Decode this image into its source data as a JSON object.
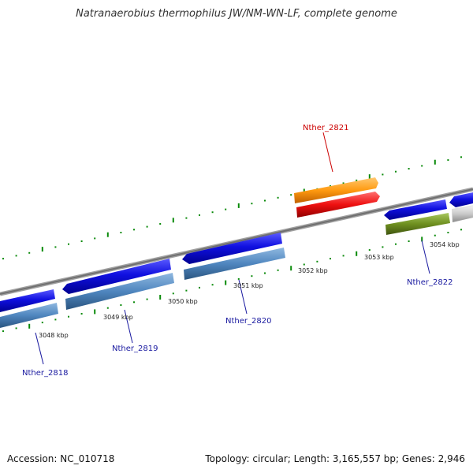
{
  "title": "Natranaerobius thermophilus JW/NM-WN-LF, complete genome",
  "footer": {
    "accession": "Accession: NC_010718",
    "summary": "Topology: circular; Length: 3,165,557 bp; Genes: 2,946"
  },
  "ruler_labels": [
    "3048 kbp",
    "3049 kbp",
    "3050 kbp",
    "3051 kbp",
    "3052 kbp",
    "3053 kbp",
    "3054 kbp"
  ],
  "gene_labels": [
    "Nther_2818",
    "Nther_2819",
    "Nther_2820",
    "Nther_2821",
    "Nther_2822"
  ],
  "colors": {
    "backbone": "#888888",
    "gene_blue": "#1010e0",
    "steel_blue": "#4f86bf",
    "orange": "#ff9a10",
    "red": "#ee1010",
    "olive": "#6f9020",
    "grey": "#c8c8c8",
    "tick_green": "#0a8a0a",
    "highlight_label": "#cc0000",
    "gene_label": "#1a1aa0"
  }
}
